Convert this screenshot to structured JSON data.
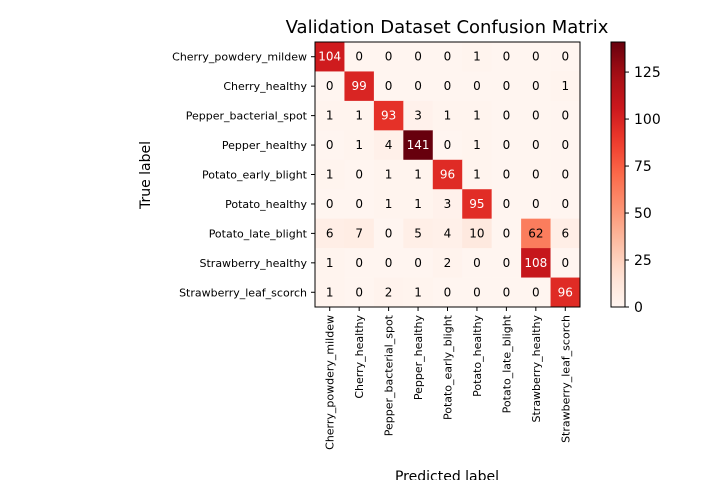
{
  "chart_data": {
    "type": "heatmap",
    "title": "Validation Dataset Confusion Matrix",
    "xlabel": "Predicted label",
    "ylabel": "True label",
    "row_labels": [
      "Cherry_powdery_mildew",
      "Cherry_healthy",
      "Pepper_bacterial_spot",
      "Pepper_healthy",
      "Potato_early_blight",
      "Potato_healthy",
      "Potato_late_blight",
      "Strawberry_healthy",
      "Strawberry_leaf_scorch"
    ],
    "col_labels": [
      "Cherry_powdery_mildew",
      "Cherry_healthy",
      "Pepper_bacterial_spot",
      "Pepper_healthy",
      "Potato_early_blight",
      "Potato_healthy",
      "Potato_late_blight",
      "Strawberry_healthy",
      "Strawberry_leaf_scorch"
    ],
    "values": [
      [
        104,
        0,
        0,
        0,
        0,
        1,
        0,
        0,
        0
      ],
      [
        0,
        99,
        0,
        0,
        0,
        0,
        0,
        0,
        1
      ],
      [
        1,
        1,
        93,
        3,
        1,
        1,
        0,
        0,
        0
      ],
      [
        0,
        1,
        4,
        141,
        0,
        1,
        0,
        0,
        0
      ],
      [
        1,
        0,
        1,
        1,
        96,
        1,
        0,
        0,
        0
      ],
      [
        0,
        0,
        1,
        1,
        3,
        95,
        0,
        0,
        0
      ],
      [
        6,
        7,
        0,
        5,
        4,
        10,
        0,
        62,
        6
      ],
      [
        1,
        0,
        0,
        0,
        2,
        0,
        0,
        108,
        0
      ],
      [
        1,
        0,
        2,
        1,
        0,
        0,
        0,
        0,
        96
      ]
    ],
    "colormap": "Reds",
    "vmin": 0,
    "vmax": 141,
    "colorbar_ticks": [
      0,
      25,
      50,
      75,
      100,
      125
    ]
  }
}
